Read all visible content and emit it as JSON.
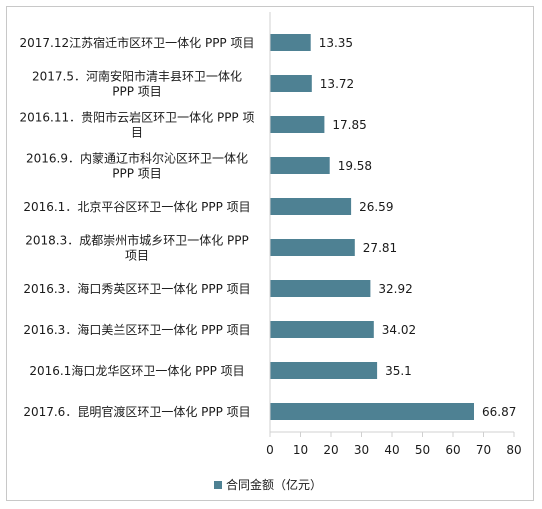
{
  "chart_data": {
    "type": "bar",
    "orientation": "horizontal",
    "categories": [
      "2017.12江苏宿迁市区环卫一体化 PPP 项目",
      "2017.5．河南安阳市清丰县环卫一体化 PPP 项目",
      "2016.11．贵阳市云岩区环卫一体化 PPP 项目",
      "2016.9．内蒙通辽市科尔沁区环卫一体化 PPP 项目",
      "2016.1．北京平谷区环卫一体化 PPP 项目",
      "2018.3．成都崇州市城乡环卫一体化 PPP 项目",
      "2016.3．海口秀英区环卫一体化 PPP 项目",
      "2016.3．海口美兰区环卫一体化 PPP 项目",
      "2016.1海口龙华区环卫一体化 PPP 项目",
      "2017.6．昆明官渡区环卫一体化 PPP 项目"
    ],
    "category_lines": [
      [
        "2017.12江苏宿迁市区环卫一体化 PPP 项目"
      ],
      [
        "2017.5．河南安阳市清丰县环卫一体化",
        "PPP 项目"
      ],
      [
        "2016.11．贵阳市云岩区环卫一体化 PPP 项",
        "目"
      ],
      [
        "2016.9．内蒙通辽市科尔沁区环卫一体化",
        "PPP 项目"
      ],
      [
        "2016.1．北京平谷区环卫一体化 PPP 项目"
      ],
      [
        "2018.3．成都崇州市城乡环卫一体化 PPP",
        "项目"
      ],
      [
        "2016.3．海口秀英区环卫一体化 PPP 项目"
      ],
      [
        "2016.3．海口美兰区环卫一体化 PPP 项目"
      ],
      [
        "2016.1海口龙华区环卫一体化 PPP 项目"
      ],
      [
        "2017.6．昆明官渡区环卫一体化 PPP 项目"
      ]
    ],
    "series": [
      {
        "name": "合同金额（亿元）",
        "values": [
          13.35,
          13.72,
          17.85,
          19.58,
          26.59,
          27.81,
          32.92,
          34.02,
          35.1,
          66.87
        ],
        "value_labels": [
          "13.35",
          "13.72",
          "17.85",
          "19.58",
          "26.59",
          "27.81",
          "32.92",
          "34.02",
          "35.1",
          "66.87"
        ]
      }
    ],
    "xlim": [
      0,
      80
    ],
    "xticks": [
      0,
      10,
      20,
      30,
      40,
      50,
      60,
      70,
      80
    ],
    "grid": false,
    "legend_position": "bottom-left",
    "bar_color": "#4e8193"
  },
  "legend": {
    "label": "合同金额（亿元）"
  }
}
